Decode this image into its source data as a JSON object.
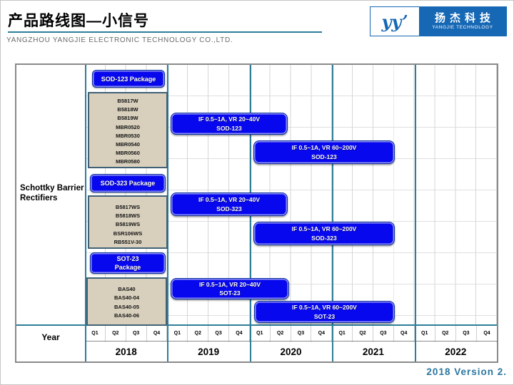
{
  "header": {
    "title": "产品路线图—小信号",
    "subtitle": "YANGZHOU YANGJIE ELECTRONIC TECHNOLOGY CO.,LTD.",
    "logo": {
      "mark_text": "yy’",
      "name_cn": "扬杰科技",
      "name_en": "YANGJIE TECHNOLOGY"
    }
  },
  "chart": {
    "group_label_line1": "Schottky Barrier",
    "group_label_line2": "Rectifiers",
    "year_axis_label": "Year",
    "quarters": [
      "Q1",
      "Q2",
      "Q3",
      "Q4"
    ],
    "years": [
      "2018",
      "2019",
      "2020",
      "2021",
      "2022"
    ],
    "sections": [
      {
        "package_lines": [
          "SOD-123 Package"
        ],
        "parts": [
          "B5817W",
          "B5818W",
          "B5819W",
          "MBR0520",
          "MBR0530",
          "MBR0540",
          "MBR0560",
          "MBR0580"
        ],
        "bars": [
          {
            "line1": "IF 0.5~1A, VR 20~40V",
            "line2": "SOD-123"
          },
          {
            "line1": "IF 0.5~1A, VR 60~200V",
            "line2": "SOD-123"
          }
        ]
      },
      {
        "package_lines": [
          "SOD-323 Package"
        ],
        "parts": [
          "B5817WS",
          "B5818WS",
          "B5819WS",
          "BSR106WS",
          "RB551V-30"
        ],
        "bars": [
          {
            "line1": "IF 0.5~1A, VR 20~40V",
            "line2": "SOD-323"
          },
          {
            "line1": "IF 0.5~1A, VR 60~200V",
            "line2": "SOD-323"
          }
        ]
      },
      {
        "package_lines": [
          "SOT-23",
          "Package"
        ],
        "parts": [
          "BAS40",
          "BAS40-04",
          "BAS40-05",
          "BAS40-06"
        ],
        "bars": [
          {
            "line1": "IF 0.5~1A, VR 20~40V",
            "line2": "SOT-23"
          },
          {
            "line1": "IF 0.5~1A, VR 60~200V",
            "line2": "SOT-23"
          }
        ]
      }
    ]
  },
  "footer": {
    "version": "2018 Version 2."
  },
  "chart_data": {
    "type": "gantt",
    "title": "产品路线图—小信号 (Product roadmap — small signal)",
    "group": "Schottky Barrier Rectifiers",
    "x_axis": {
      "years": [
        2018,
        2019,
        2020,
        2021,
        2022
      ],
      "unit": "quarter",
      "quarters_per_year": 4
    },
    "rows": [
      {
        "package": "SOD-123",
        "parts": [
          "B5817W",
          "B5818W",
          "B5819W",
          "MBR0520",
          "MBR0530",
          "MBR0540",
          "MBR0560",
          "MBR0580"
        ],
        "bars": [
          {
            "label": "IF 0.5~1A, VR 20~40V SOD-123",
            "start": "2019-Q1",
            "end": "2020-Q2"
          },
          {
            "label": "IF 0.5~1A, VR 60~200V SOD-123",
            "start": "2020-Q1",
            "end": "2021-Q3"
          }
        ]
      },
      {
        "package": "SOD-323",
        "parts": [
          "B5817WS",
          "B5818WS",
          "B5819WS",
          "BSR106WS",
          "RB551V-30"
        ],
        "bars": [
          {
            "label": "IF 0.5~1A, VR 20~40V SOD-323",
            "start": "2019-Q1",
            "end": "2020-Q2"
          },
          {
            "label": "IF 0.5~1A, VR 60~200V SOD-323",
            "start": "2020-Q1",
            "end": "2021-Q3"
          }
        ]
      },
      {
        "package": "SOT-23",
        "parts": [
          "BAS40",
          "BAS40-04",
          "BAS40-05",
          "BAS40-06"
        ],
        "bars": [
          {
            "label": "IF 0.5~1A, VR 20~40V SOT-23",
            "start": "2019-Q1",
            "end": "2020-Q2"
          },
          {
            "label": "IF 0.5~1A, VR 60~200V SOT-23",
            "start": "2020-Q1",
            "end": "2021-Q3"
          }
        ]
      }
    ],
    "legend_position": "none",
    "grid": true
  },
  "colors": {
    "bar_blue": "#0808ee",
    "parts_box_fill": "#d8d0bd",
    "parts_box_border": "#416176",
    "year_line_teal": "#2e7e99",
    "grid_gray": "#d6d6d6",
    "chart_border": "#8a8a8a",
    "logo_blue": "#1668b5",
    "version_text": "#2a76a0",
    "title_underline": "#2b7d99"
  }
}
